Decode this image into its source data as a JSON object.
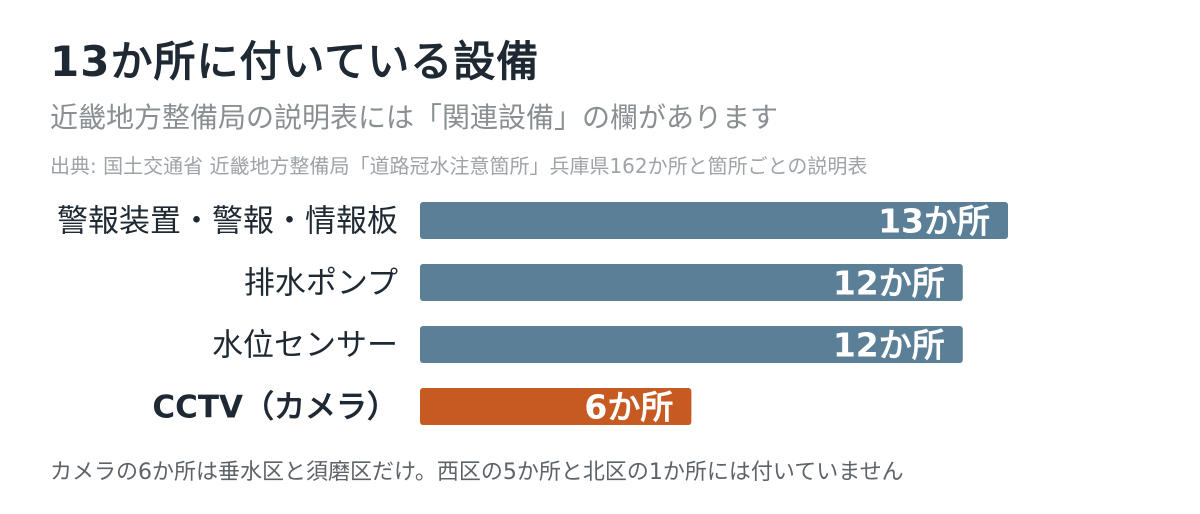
{
  "title": "13か所に付いている設備",
  "subtitle": "近畿地方整備局の説明表には「関連設備」の欄があります",
  "source": "出典: 国土交通省 近畿地方整備局「道路冠水注意箇所」兵庫県162か所と箇所ごとの説明表",
  "note": "カメラの6か所は垂水区と須磨区だけ。西区の5か所と北区の1か所には付いていません",
  "colors": {
    "bar": "#5b7f96",
    "highlight": "#c65a22",
    "text": "#1f2933"
  },
  "chart_data": {
    "type": "bar",
    "orientation": "horizontal",
    "categories": [
      "警報装置・警報・情報板",
      "排水ポンプ",
      "水位センサー",
      "CCTV（カメラ）"
    ],
    "values": [
      13,
      12,
      12,
      6
    ],
    "value_labels": [
      "13か所",
      "12か所",
      "12か所",
      "6か所"
    ],
    "highlight_index": 3,
    "xlim": [
      0,
      13
    ],
    "grid": false,
    "legend": "none"
  }
}
